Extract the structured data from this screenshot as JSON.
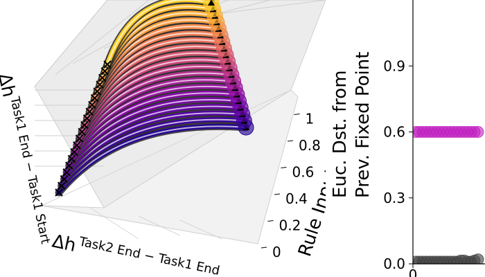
{
  "chart_data": [
    {
      "type": "line",
      "projection": "3d",
      "xlabel_main": "Δh",
      "xlabel_sub": "Task2 End − Task1 End",
      "ylabel_main": "Δh",
      "ylabel_sub": "Task1 End − Task1 Start",
      "zlabel": "Rule Input α",
      "z_ticks": [
        "0",
        "0.2",
        "0.4",
        "0.6",
        "0.8",
        "1"
      ],
      "zlim": [
        0,
        1
      ],
      "grid": true,
      "colormap": "plasma",
      "num_trajectories": 20,
      "start_marker": "x",
      "end_marker": "triangle"
    },
    {
      "type": "scatter",
      "y_ticks": [
        "0.0",
        "0.3",
        "0.6",
        "0.9"
      ],
      "x_ticks": [
        "0"
      ],
      "ylim": [
        0,
        1.2
      ],
      "series": [
        {
          "color": "#c020c0",
          "y": [
            0.6,
            0.6,
            0.6,
            0.6,
            0.6,
            0.6,
            0.6,
            0.6,
            0.6,
            0.6,
            0.6,
            0.6,
            0.6,
            0.6,
            0.6,
            0.6,
            0.6,
            0.6,
            0.6
          ]
        },
        {
          "color": "#404040",
          "y": [
            0.01,
            0.01,
            0.01,
            0.01,
            0.01,
            0.01,
            0.01,
            0.01,
            0.01,
            0.01,
            0.01,
            0.01,
            0.01,
            0.015,
            0.015,
            0.01,
            0.01,
            0.015,
            0.02
          ]
        }
      ]
    }
  ],
  "chart2": {
    "ylabel_line1": "Euc. Dst. from",
    "ylabel_line2": "Prev. Fixed Point"
  }
}
